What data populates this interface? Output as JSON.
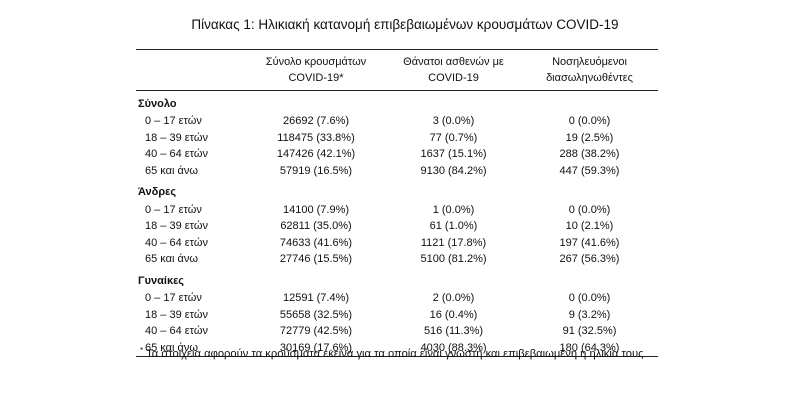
{
  "title": "Πίνακας 1: Ηλικιακή κατανομή επιβεβαιωμένων κρουσμάτων COVID-19",
  "columns": [
    {
      "line1": "Σύνολο κρουσμάτων",
      "line2": "COVID-19*"
    },
    {
      "line1": "Θάνατοι ασθενών με",
      "line2": "COVID-19"
    },
    {
      "line1": "Νοσηλευόμενοι",
      "line2": "διασωληνωθέντες"
    }
  ],
  "groups": [
    {
      "name": "Σύνολο",
      "rows": [
        {
          "label": "0 – 17 ετών",
          "cases": "26692 (7.6%)",
          "deaths": "3 (0.0%)",
          "intubated": "0 (0.0%)"
        },
        {
          "label": "18 – 39 ετών",
          "cases": "118475 (33.8%)",
          "deaths": "77 (0.7%)",
          "intubated": "19 (2.5%)"
        },
        {
          "label": "40 – 64 ετών",
          "cases": "147426 (42.1%)",
          "deaths": "1637 (15.1%)",
          "intubated": "288 (38.2%)"
        },
        {
          "label": "65 και άνω",
          "cases": "57919 (16.5%)",
          "deaths": "9130 (84.2%)",
          "intubated": "447 (59.3%)"
        }
      ]
    },
    {
      "name": "Άνδρες",
      "rows": [
        {
          "label": "0 – 17 ετών",
          "cases": "14100 (7.9%)",
          "deaths": "1 (0.0%)",
          "intubated": "0 (0.0%)"
        },
        {
          "label": "18 – 39 ετών",
          "cases": "62811 (35.0%)",
          "deaths": "61 (1.0%)",
          "intubated": "10 (2.1%)"
        },
        {
          "label": "40 – 64 ετών",
          "cases": "74633 (41.6%)",
          "deaths": "1121 (17.8%)",
          "intubated": "197 (41.6%)"
        },
        {
          "label": "65 και άνω",
          "cases": "27746 (15.5%)",
          "deaths": "5100 (81.2%)",
          "intubated": "267 (56.3%)"
        }
      ]
    },
    {
      "name": "Γυναίκες",
      "rows": [
        {
          "label": "0 – 17 ετών",
          "cases": "12591 (7.4%)",
          "deaths": "2 (0.0%)",
          "intubated": "0 (0.0%)"
        },
        {
          "label": "18 – 39 ετών",
          "cases": "55658 (32.5%)",
          "deaths": "16 (0.4%)",
          "intubated": "9 (3.2%)"
        },
        {
          "label": "40 – 64 ετών",
          "cases": "72779 (42.5%)",
          "deaths": "516 (11.3%)",
          "intubated": "91 (32.5%)"
        },
        {
          "label": "65 και άνω",
          "cases": "30169 (17.6%)",
          "deaths": "4030 (88.3%)",
          "intubated": "180 (64.3%)"
        }
      ]
    }
  ],
  "footnote": {
    "marker": "*",
    "text": "Τα στοιχεία αφορούν τα κρούσματα εκείνα για τα οποία είναι γνωστή και επιβεβαιωμένη η ηλικία τους"
  }
}
